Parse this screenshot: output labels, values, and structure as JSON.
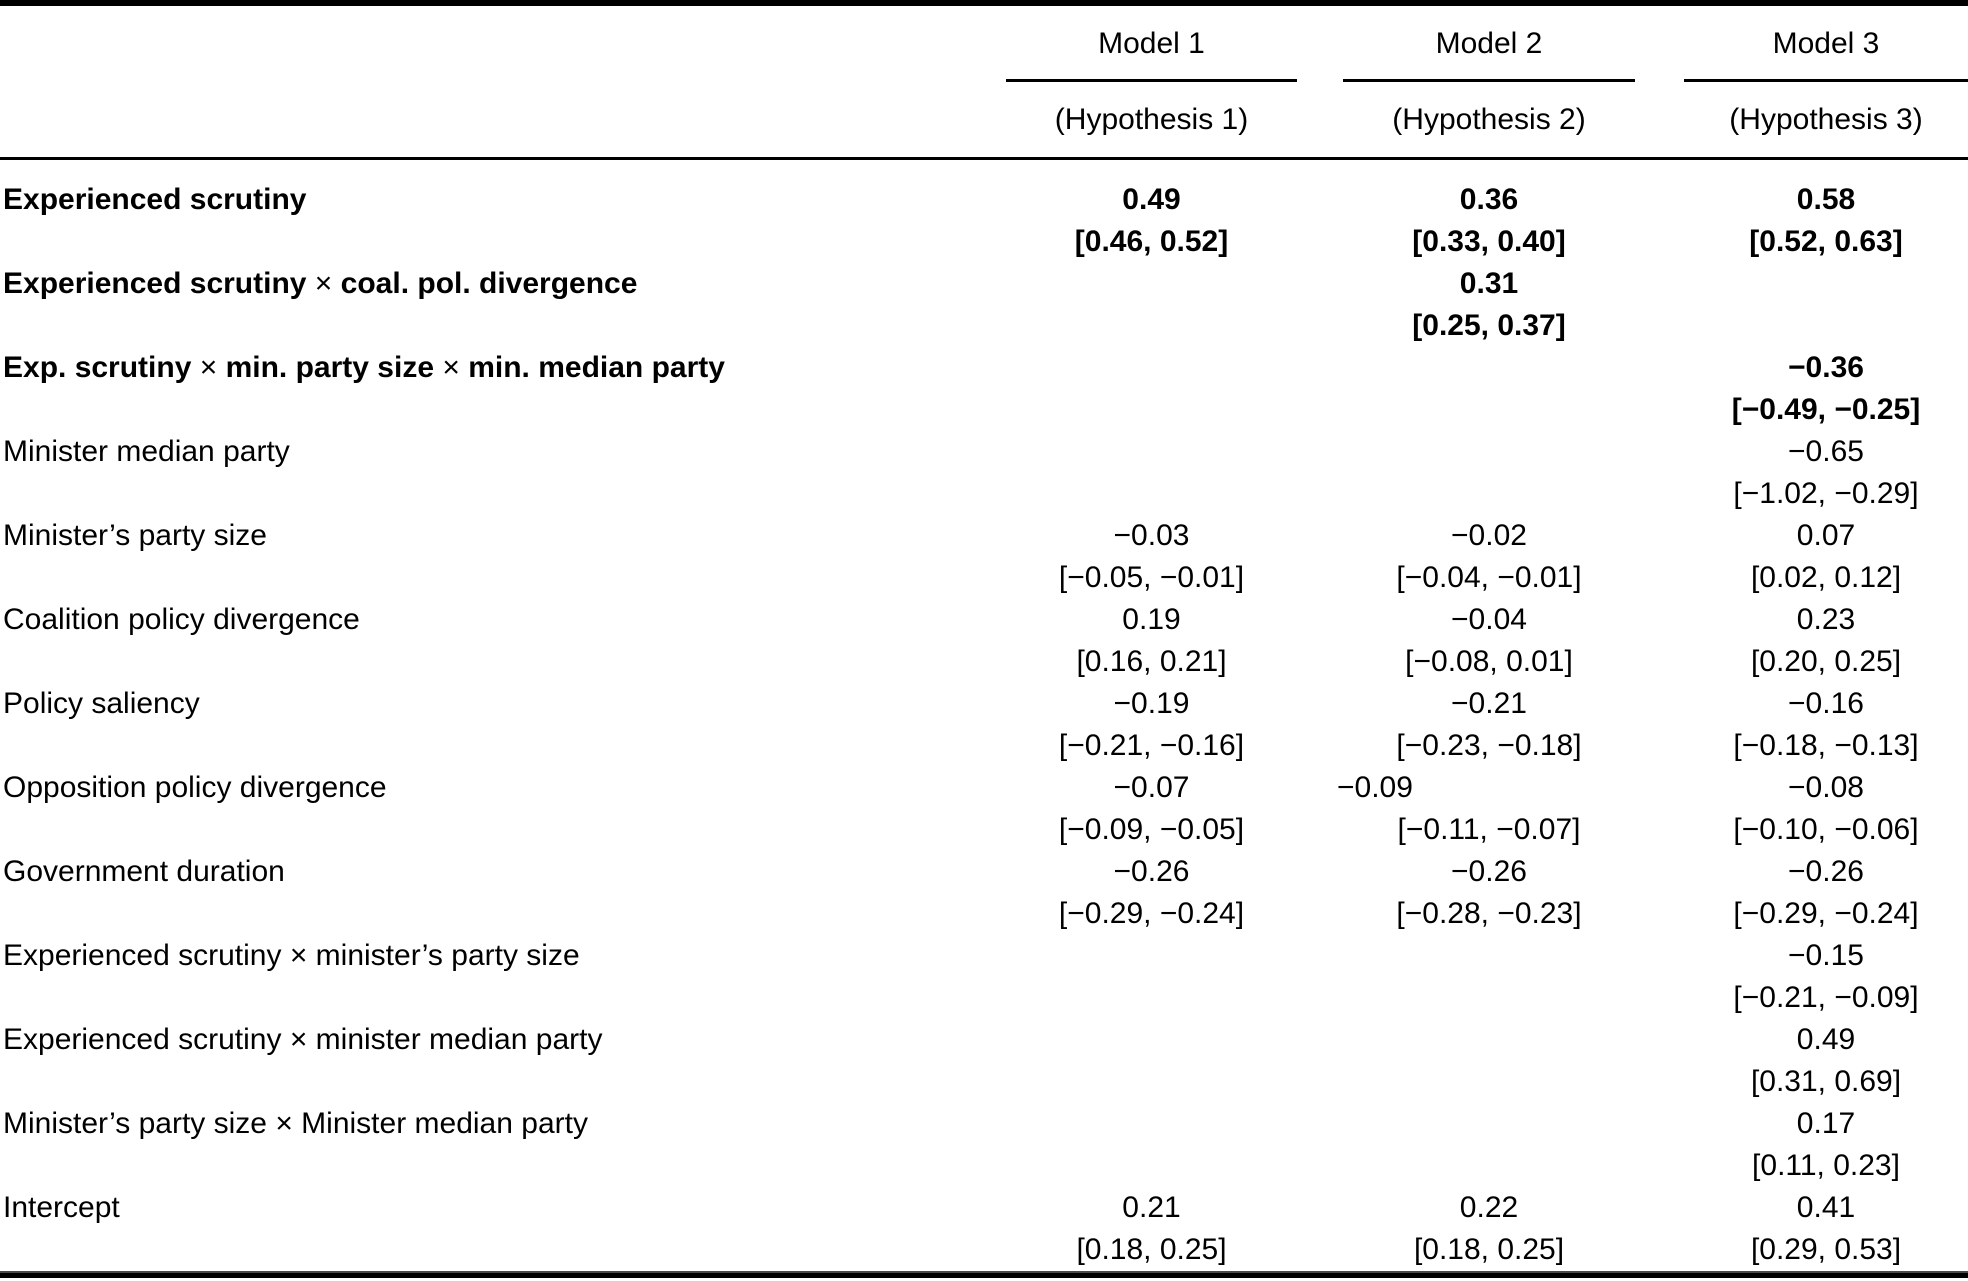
{
  "colors": {
    "text": "#000000",
    "background": "#ffffff",
    "rule": "#000000"
  },
  "table": {
    "models": [
      {
        "name": "Model 1",
        "hypothesis": "(Hypothesis 1)"
      },
      {
        "name": "Model 2",
        "hypothesis": "(Hypothesis 2)"
      },
      {
        "name": "Model 3",
        "hypothesis": "(Hypothesis 3)"
      }
    ],
    "rows": [
      {
        "label": "Experienced scrutiny",
        "bold": true,
        "cells": [
          {
            "est": "0.49",
            "ci": "[0.46, 0.52]"
          },
          {
            "est": "0.36",
            "ci": "[0.33, 0.40]"
          },
          {
            "est": "0.58",
            "ci": "[0.52, 0.63]"
          }
        ]
      },
      {
        "label": "Experienced scrutiny × coal. pol. divergence",
        "bold": true,
        "cells": [
          null,
          {
            "est": "0.31",
            "ci": "[0.25, 0.37]"
          },
          null
        ]
      },
      {
        "label": "Exp. scrutiny × min. party size × min. median party",
        "bold": true,
        "cells": [
          null,
          null,
          {
            "est": "−0.36",
            "ci": "[−0.49, −0.25]"
          }
        ]
      },
      {
        "label": "Minister median party",
        "bold": false,
        "cells": [
          null,
          null,
          {
            "est": "−0.65",
            "ci": "[−1.02, −0.29]"
          }
        ]
      },
      {
        "label": "Minister’s party size",
        "bold": false,
        "cells": [
          {
            "est": "−0.03",
            "ci": "[−0.05, −0.01]"
          },
          {
            "est": "−0.02",
            "ci": "[−0.04, −0.01]"
          },
          {
            "est": "0.07",
            "ci": "[0.02, 0.12]"
          }
        ]
      },
      {
        "label": "Coalition policy divergence",
        "bold": false,
        "cells": [
          {
            "est": "0.19",
            "ci": "[0.16, 0.21]"
          },
          {
            "est": "−0.04",
            "ci": "[−0.08, 0.01]"
          },
          {
            "est": "0.23",
            "ci": "[0.20, 0.25]"
          }
        ]
      },
      {
        "label": "Policy saliency",
        "bold": false,
        "cells": [
          {
            "est": "−0.19",
            "ci": "[−0.21, −0.16]"
          },
          {
            "est": "−0.21",
            "ci": "[−0.23, −0.18]"
          },
          {
            "est": "−0.16",
            "ci": "[−0.18, −0.13]"
          }
        ]
      },
      {
        "label": "Opposition policy divergence",
        "bold": false,
        "cells": [
          {
            "est": "−0.07",
            "ci": "[−0.09, −0.05]"
          },
          {
            "est": "−0.09",
            "ci": "[−0.11, −0.07]",
            "est_align": "left"
          },
          {
            "est": "−0.08",
            "ci": "[−0.10, −0.06]"
          }
        ]
      },
      {
        "label": "Government duration",
        "bold": false,
        "cells": [
          {
            "est": "−0.26",
            "ci": "[−0.29, −0.24]"
          },
          {
            "est": "−0.26",
            "ci": "[−0.28, −0.23]"
          },
          {
            "est": "−0.26",
            "ci": "[−0.29, −0.24]"
          }
        ]
      },
      {
        "label": "Experienced scrutiny × minister’s party size",
        "bold": false,
        "cells": [
          null,
          null,
          {
            "est": "−0.15",
            "ci": "[−0.21, −0.09]"
          }
        ]
      },
      {
        "label": "Experienced scrutiny × minister median party",
        "bold": false,
        "cells": [
          null,
          null,
          {
            "est": "0.49",
            "ci": "[0.31, 0.69]"
          }
        ]
      },
      {
        "label": "Minister’s party size × Minister median party",
        "bold": false,
        "cells": [
          null,
          null,
          {
            "est": "0.17",
            "ci": "[0.11, 0.23]"
          }
        ]
      },
      {
        "label": "Intercept",
        "bold": false,
        "cells": [
          {
            "est": "0.21",
            "ci": "[0.18, 0.25]"
          },
          {
            "est": "0.22",
            "ci": "[0.18, 0.25]"
          },
          {
            "est": "0.41",
            "ci": "[0.29, 0.53]"
          }
        ]
      }
    ]
  }
}
